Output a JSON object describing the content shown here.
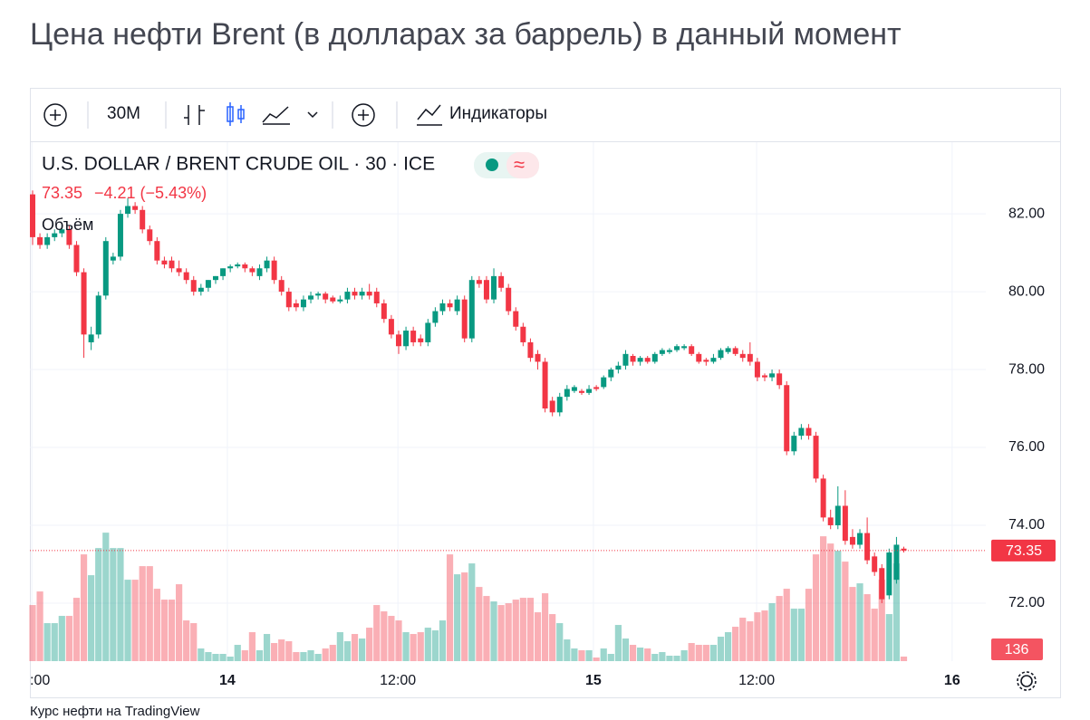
{
  "chart_data": {
    "type": "candlestick",
    "title": "Цена нефти Brent (в долларах за баррель) в данный момент",
    "interval": "30M",
    "indicators_label": "Индикаторы",
    "symbol": "U.S. DOLLAR / BRENT CRUDE OIL · 30 · ICE",
    "change": "−4.21 (−5.43%)",
    "volume_label": "Объём",
    "footer": "Курс нефти на TradingView",
    "up_color": "#089981",
    "down_color": "#f23645",
    "grid": true,
    "ylim": [
      70.51,
      83.84
    ],
    "yticks": [
      {
        "value": 72,
        "label": "72.00"
      },
      {
        "value": 74,
        "label": "74.00"
      },
      {
        "value": 76,
        "label": "76.00"
      },
      {
        "value": 78,
        "label": "78.00"
      },
      {
        "value": 80,
        "label": "80.00"
      },
      {
        "value": 82,
        "label": "82.00"
      }
    ],
    "xlim": [
      -0.37,
      130.2
    ],
    "xticks": [
      {
        "value": -0.1,
        "label": ":00"
      },
      {
        "value": 26.6,
        "label": "14"
      },
      {
        "value": 49.9,
        "label": "12:00"
      },
      {
        "value": 76.6,
        "label": "15"
      },
      {
        "value": 98.9,
        "label": "12:00"
      },
      {
        "value": 125.6,
        "label": "16"
      }
    ],
    "volume_lim": [
      0,
      4000
    ],
    "open": [
      82.5,
      81.4,
      81.2,
      81.4,
      81.5,
      81.6,
      81.2,
      80.5,
      78.7,
      78.9,
      79.9,
      80.8,
      80.9,
      82.0,
      82.2,
      82.1,
      81.6,
      81.3,
      80.8,
      80.8,
      80.6,
      80.5,
      80.3,
      80.0,
      80.1,
      80.3,
      80.4,
      80.6,
      80.65,
      80.7,
      80.6,
      80.4,
      80.6,
      80.8,
      80.3,
      80.0,
      79.7,
      79.6,
      79.8,
      79.9,
      79.95,
      79.85,
      79.75,
      79.8,
      80.0,
      79.9,
      80.0,
      80.0,
      79.7,
      79.3,
      78.9,
      78.6,
      79.0,
      78.8,
      78.7,
      79.2,
      79.5,
      79.7,
      79.5,
      79.8,
      78.8,
      80.3,
      80.3,
      79.8,
      80.4,
      80.1,
      79.5,
      79.1,
      78.7,
      78.4,
      78.2,
      77.2,
      76.9,
      77.3,
      77.45,
      77.45,
      77.4,
      77.55,
      77.55,
      77.8,
      78.0,
      78.1,
      78.35,
      78.2,
      78.3,
      78.2,
      78.4,
      78.45,
      78.5,
      78.55,
      78.6,
      78.4,
      78.25,
      78.2,
      78.3,
      78.45,
      78.55,
      78.4,
      78.4,
      78.2,
      77.85,
      77.8,
      77.9,
      77.6,
      75.9,
      76.3,
      76.5,
      76.3,
      75.2,
      74.2,
      74.0,
      74.5,
      73.7,
      73.5,
      73.8,
      73.2,
      72.9,
      72.2,
      72.6,
      73.4
    ],
    "high": [
      82.6,
      81.5,
      81.5,
      81.6,
      81.7,
      81.7,
      81.3,
      80.6,
      79.1,
      80.0,
      81.4,
      81.0,
      82.1,
      82.4,
      82.3,
      82.2,
      81.7,
      81.4,
      80.9,
      80.9,
      80.8,
      80.6,
      80.4,
      80.2,
      80.3,
      80.4,
      80.6,
      80.7,
      80.75,
      80.75,
      80.65,
      80.7,
      80.9,
      80.9,
      80.4,
      80.1,
      79.8,
      79.9,
      80.0,
      80.0,
      80.0,
      79.9,
      79.9,
      80.1,
      80.1,
      80.1,
      80.2,
      80.1,
      79.8,
      79.4,
      79.0,
      79.1,
      79.1,
      78.9,
      79.3,
      79.6,
      79.8,
      79.8,
      79.9,
      79.9,
      80.4,
      80.4,
      80.4,
      80.6,
      80.5,
      80.2,
      79.6,
      79.2,
      78.8,
      78.5,
      78.3,
      77.3,
      77.4,
      77.6,
      77.6,
      77.5,
      77.6,
      77.6,
      77.85,
      78.05,
      78.2,
      78.5,
      78.4,
      78.35,
      78.35,
      78.45,
      78.55,
      78.55,
      78.65,
      78.65,
      78.65,
      78.45,
      78.3,
      78.4,
      78.55,
      78.6,
      78.6,
      78.5,
      78.7,
      78.3,
      77.9,
      78.0,
      78.0,
      77.7,
      76.4,
      76.6,
      76.6,
      76.4,
      75.3,
      74.4,
      75.0,
      74.9,
      73.9,
      73.9,
      74.2,
      73.3,
      73.0,
      73.4,
      73.7,
      73.45
    ],
    "low": [
      81.2,
      81.1,
      81.1,
      81.3,
      81.4,
      81.1,
      80.4,
      78.3,
      78.5,
      78.8,
      79.8,
      80.7,
      80.8,
      81.9,
      82.0,
      81.5,
      81.2,
      80.7,
      80.6,
      80.5,
      80.4,
      80.2,
      79.9,
      79.9,
      80.0,
      80.2,
      80.3,
      80.5,
      80.6,
      80.5,
      80.4,
      80.3,
      80.5,
      80.2,
      79.9,
      79.5,
      79.5,
      79.5,
      79.7,
      79.8,
      79.7,
      79.7,
      79.7,
      79.7,
      79.8,
      79.8,
      79.8,
      79.6,
      79.2,
      78.8,
      78.4,
      78.5,
      78.6,
      78.6,
      78.6,
      79.1,
      79.4,
      79.5,
      79.4,
      78.7,
      78.7,
      80.1,
      79.7,
      79.7,
      80.0,
      79.4,
      79.0,
      78.6,
      78.2,
      78.0,
      76.9,
      76.8,
      76.8,
      77.2,
      77.4,
      77.35,
      77.35,
      77.45,
      77.5,
      77.7,
      77.9,
      78.0,
      78.1,
      78.1,
      78.15,
      78.15,
      78.35,
      78.4,
      78.45,
      78.5,
      78.35,
      78.15,
      78.1,
      78.15,
      78.25,
      78.4,
      78.35,
      78.2,
      78.1,
      77.7,
      77.7,
      77.7,
      77.5,
      75.8,
      75.8,
      76.2,
      76.2,
      75.1,
      74.1,
      73.9,
      73.9,
      73.5,
      73.4,
      73.4,
      73.0,
      72.7,
      72.0,
      72.1,
      72.5,
      73.3
    ],
    "close": [
      81.4,
      81.2,
      81.4,
      81.5,
      81.6,
      81.2,
      80.5,
      78.9,
      78.9,
      79.9,
      81.3,
      80.9,
      82.0,
      82.2,
      82.1,
      81.6,
      81.3,
      80.8,
      80.7,
      80.6,
      80.5,
      80.3,
      80.0,
      80.1,
      80.3,
      80.4,
      80.6,
      80.65,
      80.7,
      80.6,
      80.5,
      80.6,
      80.8,
      80.3,
      80.0,
      79.6,
      79.6,
      79.8,
      79.9,
      79.95,
      79.8,
      79.75,
      79.8,
      80.0,
      79.9,
      80.0,
      79.9,
      79.7,
      79.3,
      78.9,
      78.6,
      79.0,
      78.7,
      78.7,
      79.2,
      79.5,
      79.7,
      79.6,
      79.8,
      78.8,
      80.3,
      80.2,
      79.8,
      80.4,
      80.1,
      79.5,
      79.1,
      78.7,
      78.3,
      78.2,
      77.0,
      76.9,
      77.3,
      77.5,
      77.55,
      77.4,
      77.5,
      77.5,
      77.8,
      78.0,
      78.1,
      78.4,
      78.2,
      78.3,
      78.2,
      78.4,
      78.5,
      78.5,
      78.6,
      78.6,
      78.4,
      78.2,
      78.2,
      78.3,
      78.5,
      78.55,
      78.4,
      78.3,
      78.2,
      77.8,
      77.8,
      77.9,
      77.6,
      75.9,
      76.3,
      76.5,
      76.3,
      75.2,
      74.2,
      74.0,
      74.5,
      73.6,
      73.5,
      73.8,
      73.1,
      72.8,
      72.1,
      73.3,
      73.5,
      73.35
    ],
    "volume": [
      1674,
      2079,
      1134,
      1134,
      1350,
      1350,
      1890,
      3186,
      2565,
      3375,
      3834,
      3375,
      3375,
      2430,
      2430,
      2835,
      2835,
      2160,
      1836,
      1836,
      2295,
      1215,
      1134,
      378,
      270,
      216,
      216,
      135,
      486,
      324,
      864,
      324,
      810,
      540,
      648,
      594,
      270,
      270,
      324,
      216,
      378,
      486,
      864,
      594,
      810,
      675,
      999,
      1674,
      1485,
      1350,
      1215,
      864,
      810,
      864,
      999,
      918,
      1215,
      3186,
      2592,
      2646,
      2916,
      2214,
      1944,
      1782,
      1674,
      1728,
      1836,
      1890,
      1890,
      1458,
      2025,
      1404,
      1134,
      648,
      378,
      324,
      324,
      108,
      378,
      216,
      1080,
      675,
      486,
      405,
      378,
      216,
      270,
      162,
      162,
      324,
      540,
      486,
      486,
      486,
      729,
      864,
      1026,
      1296,
      1188,
      1458,
      1512,
      1728,
      1944,
      2160,
      1566,
      1566,
      2160,
      3186,
      3726,
      3510,
      3294,
      2970,
      2214,
      2322,
      1998,
      1566,
      2430,
      1404,
      2916,
      136
    ]
  }
}
